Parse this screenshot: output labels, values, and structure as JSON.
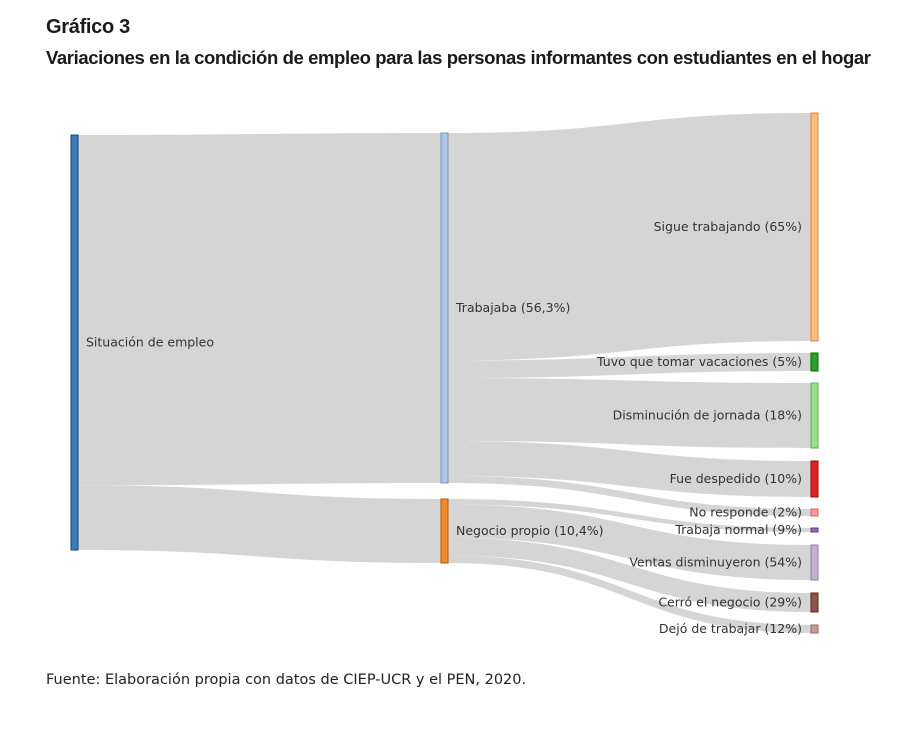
{
  "header": {
    "chart_number": "Gráfico 3",
    "title": "Variaciones en la condición de empleo para las personas informantes con estudiantes en el hogar"
  },
  "source": "Fuente: Elaboración propia con datos de CIEP-UCR y el PEN, 2020.",
  "chart_data": {
    "type": "sankey",
    "title": "Variaciones en la condición de empleo para las personas informantes con estudiantes en el hogar",
    "nodes": [
      {
        "id": "root",
        "label": "Situación de empleo",
        "color": "#3a7ab5"
      },
      {
        "id": "trab",
        "label": "Trabajaba (56,3%)",
        "color": "#aec7e8"
      },
      {
        "id": "neg",
        "label": "Negocio propio (10,4%)",
        "color": "#f08a2c"
      },
      {
        "id": "sigue",
        "label": "Sigue trabajando (65%)",
        "color": "#ffbb78"
      },
      {
        "id": "vac",
        "label": "Tuvo que tomar vacaciones (5%)",
        "color": "#2ca02c"
      },
      {
        "id": "dism",
        "label": "Disminución de jornada (18%)",
        "color": "#98df8a"
      },
      {
        "id": "desp",
        "label": "Fue despedido (10%)",
        "color": "#d62728"
      },
      {
        "id": "nores",
        "label": "No responde (2%)",
        "color": "#ff9896"
      },
      {
        "id": "normal",
        "label": "Trabaja normal (9%)",
        "color": "#9467bd"
      },
      {
        "id": "ventas",
        "label": "Ventas disminuyeron (54%)",
        "color": "#c5b0d5"
      },
      {
        "id": "cerro",
        "label": "Cerró el negocio (29%)",
        "color": "#8c564b"
      },
      {
        "id": "dejo",
        "label": "Dejó de trabajar (12%)",
        "color": "#c49c94"
      }
    ],
    "links": [
      {
        "source": "root",
        "target": "trab",
        "value": 56.3
      },
      {
        "source": "root",
        "target": "neg",
        "value": 10.4
      },
      {
        "source": "trab",
        "target": "sigue",
        "value": 65
      },
      {
        "source": "trab",
        "target": "vac",
        "value": 5
      },
      {
        "source": "trab",
        "target": "dism",
        "value": 18
      },
      {
        "source": "trab",
        "target": "desp",
        "value": 10
      },
      {
        "source": "trab",
        "target": "nores",
        "value": 2
      },
      {
        "source": "neg",
        "target": "normal",
        "value": 9
      },
      {
        "source": "neg",
        "target": "ventas",
        "value": 54
      },
      {
        "source": "neg",
        "target": "cerro",
        "value": 29
      },
      {
        "source": "neg",
        "target": "dejo",
        "value": 12
      }
    ],
    "link_color": "#d3d3d3"
  }
}
